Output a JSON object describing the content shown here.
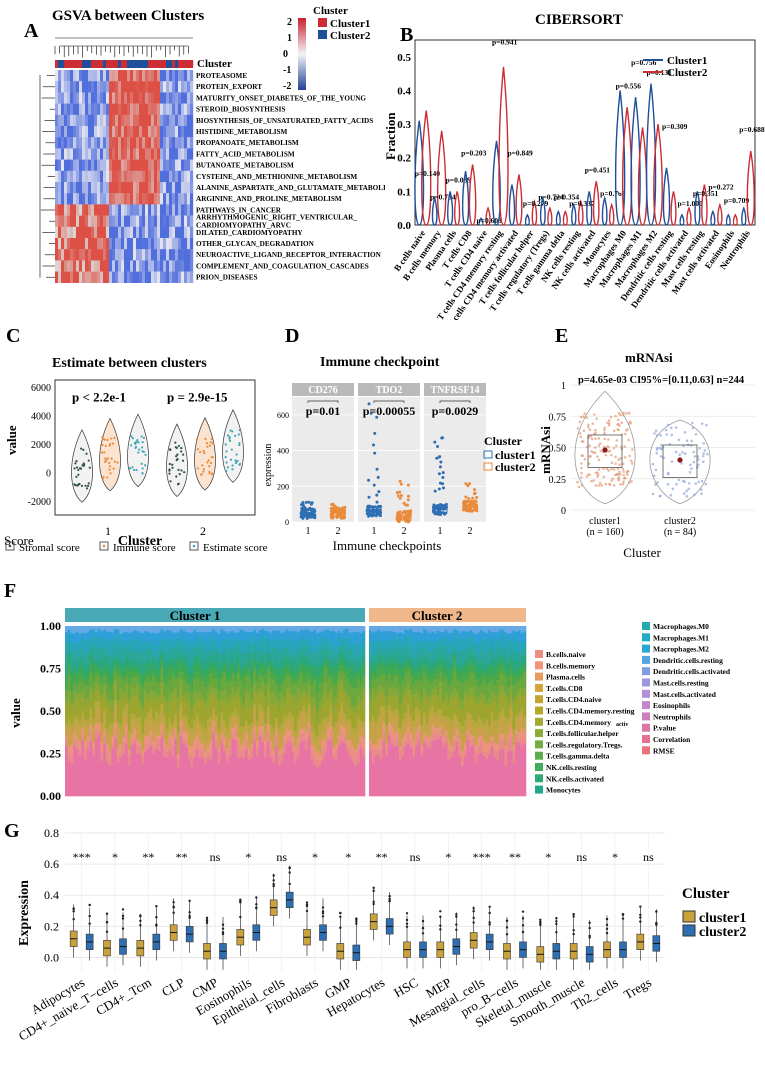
{
  "colors": {
    "cluster1": "#cc2d35",
    "cluster2": "#1f4e9a",
    "teal": "#3fa7b7",
    "peach": "#f3b384",
    "gold": "#c9a23b",
    "blue": "#2e6fb3",
    "orange": "#e98a3c",
    "dark": "#2f4f4f"
  },
  "panels": {
    "A": "A",
    "B": "B",
    "C": "C",
    "D": "D",
    "E": "E",
    "F": "F",
    "G": "G"
  },
  "chart_data": [
    {
      "id": "A",
      "type": "heatmap",
      "title": "GSVA between Clusters",
      "legend": {
        "title": "Cluster",
        "entries": [
          "Cluster1",
          "Cluster2"
        ],
        "scale_ticks": [
          "2",
          "1",
          "0",
          "-1",
          "-2"
        ]
      },
      "annotation_label": "Cluster",
      "rows": [
        "PROTEASOME",
        "PROTEIN_EXPORT",
        "MATURITY_ONSET_DIABETES_OF_THE_YOUNG",
        "STEROID_BIOSYNTHESIS",
        "BIOSYNTHESIS_OF_UNSATURATED_FATTY_ACIDS",
        "HISTIDINE_METABOLISM",
        "PROPANOATE_METABOLISM",
        "FATTY_ACID_METABOLISM",
        "BUTANOATE_METABOLISM",
        "CYSTEINE_AND_METHIONINE_METABOLISM",
        "ALANINE_ASPARTATE_AND_GLUTAMATE_METABOLISM",
        "ARGININE_AND_PROLINE_METABOLISM",
        "PATHWAYS_IN_CANCER",
        "ARRHYTHMOGENIC_RIGHT_VENTRICULAR_\nCARDIOMYOPATHY_ARVC",
        "DILATED_CARDIOMYOPATHY",
        "OTHER_GLYCAN_DEGRADATION",
        "NEUROACTIVE_LIGAND_RECEPTOR_INTERACTION",
        "COMPLEMENT_AND_COAGULATION_CASCADES",
        "PRION_DISEASES"
      ],
      "row_pattern": [
        1,
        1,
        1,
        1,
        1,
        1,
        1,
        1,
        1,
        1,
        1,
        1,
        -1,
        -1,
        -1,
        -1,
        -1,
        -1,
        -1
      ]
    },
    {
      "id": "B",
      "type": "violin",
      "title": "CIBERSORT",
      "ylabel": "Fraction",
      "ylim": [
        0,
        0.55
      ],
      "yticks": [
        "0.0",
        "0.1",
        "0.2",
        "0.3",
        "0.4",
        "0.5"
      ],
      "legend": [
        "Cluster1",
        "Cluster2"
      ],
      "categories": [
        "B cells naive",
        "B cells memory",
        "Plasma cells",
        "T cells CD8",
        "T cells CD4 naive",
        "T cells CD4 memory resting",
        "T cells CD4 memory activated",
        "T cells follicular helper",
        "T cells regulatory (Tregs)",
        "T cells gamma delta",
        "NK cells resting",
        "NK cells activated",
        "Monocytes",
        "Macrophages M0",
        "Macrophages M1",
        "Macrophages M2",
        "Dendritic cells resting",
        "Dendritic cells activated",
        "Mast cells resting",
        "Mast cells activated",
        "Eosinophils",
        "Neutrophils"
      ],
      "pvalues": [
        "p=0.140",
        "p=0.734",
        "p=0.039",
        "p=0.203",
        "p=0.603",
        "p=0.941",
        "p=0.849",
        "p=0.279",
        "p=0.724",
        "p=0.354",
        "p=0.337",
        "p=0.451",
        "p=0.763",
        "p=0.556",
        "p=0.756",
        "p=0.131",
        "p=0.309",
        "p=1.000",
        "p=0.351",
        "p=0.272",
        "p=0.709",
        "p=0.688"
      ],
      "pvalue_y": [
        0.14,
        0.07,
        0.12,
        0.2,
        0.0,
        0.53,
        0.2,
        0.05,
        0.07,
        0.07,
        0.05,
        0.15,
        0.08,
        0.4,
        0.47,
        0.44,
        0.28,
        0.05,
        0.08,
        0.1,
        0.06,
        0.27
      ],
      "max1": [
        0.31,
        0.08,
        0.1,
        0.16,
        0.02,
        0.25,
        0.12,
        0.03,
        0.08,
        0.04,
        0.06,
        0.1,
        0.08,
        0.4,
        0.38,
        0.42,
        0.17,
        0.03,
        0.1,
        0.04,
        0.03,
        0.05
      ],
      "max2": [
        0.34,
        0.28,
        0.1,
        0.18,
        0.05,
        0.47,
        0.15,
        0.07,
        0.05,
        0.04,
        0.07,
        0.13,
        0.06,
        0.35,
        0.29,
        0.3,
        0.1,
        0.05,
        0.12,
        0.06,
        0.03,
        0.22
      ]
    },
    {
      "id": "C",
      "type": "violin",
      "title": "Estimate between clusters",
      "ylabel": "value",
      "xlabel": "Cluster",
      "ylim": [
        -3000,
        6500
      ],
      "yticks": [
        "6000",
        "4000",
        "2000",
        "0",
        "-2000"
      ],
      "categories": [
        "1",
        "2"
      ],
      "pvalues": [
        "p < 2.2e-1",
        "p = 2.9e-15"
      ],
      "legend_title": "Score",
      "series": [
        "Stromal score",
        "Immune score",
        "Estimate score"
      ],
      "medians": [
        [
          200,
          1000,
          1300
        ],
        [
          600,
          1050,
          1600
        ]
      ]
    },
    {
      "id": "D",
      "type": "box",
      "title": "Immune checkpoint",
      "ylabel": "expression",
      "xlabel": "Immune  checkpoints",
      "facets": [
        "CD276",
        "TDO2",
        "TNFRSF14"
      ],
      "pvalues": [
        "p=0.01",
        "p=0.00055",
        "p=0.0029"
      ],
      "yticks": [
        "600",
        "400",
        "200",
        "0"
      ],
      "xticks": [
        "1",
        "2"
      ],
      "legend_title": "Cluster",
      "legend": [
        "cluster1",
        "cluster2"
      ]
    },
    {
      "id": "E",
      "type": "violin",
      "title": "mRNAsi",
      "ylabel": "mRNAsi",
      "xlabel": "Cluster",
      "stat": "p=4.65e-03 CI95%=[0.11,0.63] n=244",
      "yticks": [
        "1",
        "0.75",
        "0.50",
        "0.25",
        "0"
      ],
      "categories": [
        "cluster1",
        "cluster2"
      ],
      "counts": [
        "(n = 160)",
        "(n = 84)"
      ],
      "means": [
        0.48,
        0.4
      ]
    },
    {
      "id": "F",
      "type": "area",
      "ylabel": "value",
      "yticks": [
        "1.00",
        "0.75",
        "0.50",
        "0.25",
        "0.00"
      ],
      "groups": [
        "Cluster 1",
        "Cluster 2"
      ],
      "group_superscript": [
        "1",
        "2"
      ],
      "legend_col1": [
        "B.cells.naive",
        "B.cells.memory",
        "Plasma.cells",
        "T.cells.CD8",
        "T.cells.CD4.naive",
        "T.cells.CD4.memory.resting",
        "T.cells.CD4.memory",
        "T.cells.follicular.helper",
        "T.cells.regulatory.Tregs.",
        "T.cells.gamma.delta",
        "NK.cells.resting",
        "NK.cells.activated",
        "Monocytes"
      ],
      "legend_col1_suffix": "activ",
      "legend_col2": [
        "Macrophages.M0",
        "Macrophages.M1",
        "Macrophages.M2",
        "Dendritic.cells.resting",
        "Dendritic.cells.activated",
        "Mast.cells.resting",
        "Mast.cells.activated",
        "Eosinophils",
        "Neutrophils",
        "P.value",
        "Correlation",
        "RMSE"
      ],
      "layer_shares": [
        0.28,
        0.05,
        0.04,
        0.08,
        0.04,
        0.1,
        0.05,
        0.08,
        0.04,
        0.04,
        0.04,
        0.06,
        0.06,
        0.05,
        0.03
      ]
    },
    {
      "id": "G",
      "type": "box",
      "ylabel": "Expression",
      "ylim": [
        -0.1,
        0.8
      ],
      "yticks": [
        "0.8",
        "0.6",
        "0.4",
        "0.2",
        "0.0"
      ],
      "categories": [
        "Adipocytes",
        "CD4+_naive_T−cells",
        "CD4+_Tcm",
        "CLP",
        "CMP",
        "Eosinophils",
        "Epithelial_cells",
        "Fibroblasts",
        "GMP",
        "Hepatocytes",
        "HSC",
        "MEP",
        "Mesangial_cells",
        "pro_B−cells",
        "Skeletal_muscle",
        "Smooth_muscle",
        "Th2_cells",
        "Tregs"
      ],
      "signif": [
        "***",
        "*",
        "**",
        "**",
        "ns",
        "*",
        "ns",
        "*",
        "*",
        "**",
        "ns",
        "*",
        "***",
        "**",
        "*",
        "ns",
        "*",
        "ns"
      ],
      "legend_title": "Cluster",
      "legend": [
        "cluster1",
        "cluster2"
      ],
      "median1": [
        0.12,
        0.06,
        0.06,
        0.16,
        0.04,
        0.13,
        0.32,
        0.13,
        0.04,
        0.23,
        0.05,
        0.05,
        0.11,
        0.04,
        0.02,
        0.04,
        0.05,
        0.1
      ],
      "median2": [
        0.1,
        0.07,
        0.1,
        0.15,
        0.04,
        0.16,
        0.37,
        0.16,
        0.03,
        0.2,
        0.05,
        0.07,
        0.1,
        0.05,
        0.04,
        0.02,
        0.05,
        0.09
      ]
    }
  ]
}
